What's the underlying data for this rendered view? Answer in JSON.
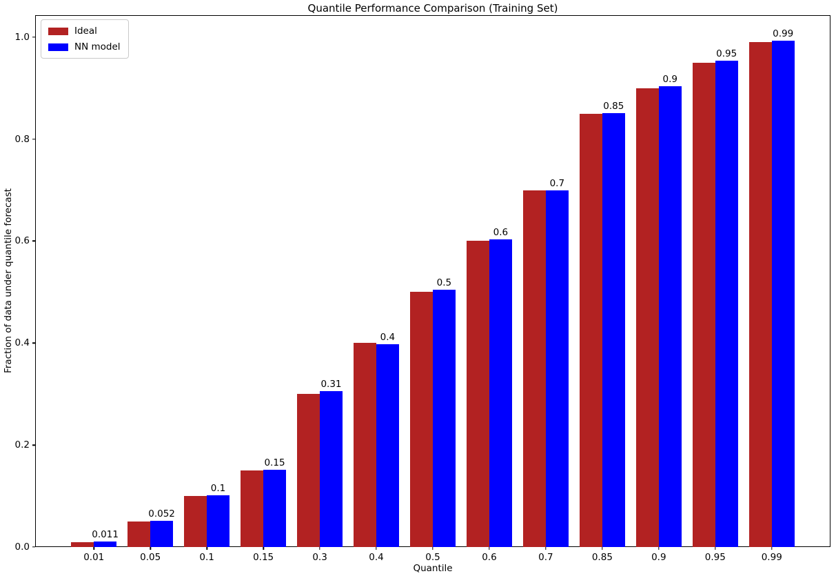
{
  "chart_data": {
    "type": "bar",
    "title": "Quantile Performance Comparison (Training Set)",
    "xlabel": "Quantile",
    "ylabel": "Fraction of data under quantile forecast",
    "categories": [
      "0.01",
      "0.05",
      "0.1",
      "0.15",
      "0.3",
      "0.4",
      "0.5",
      "0.6",
      "0.7",
      "0.85",
      "0.9",
      "0.95",
      "0.99"
    ],
    "series": [
      {
        "name": "Ideal",
        "color": "#b22222",
        "values": [
          0.01,
          0.05,
          0.1,
          0.15,
          0.3,
          0.4,
          0.5,
          0.6,
          0.7,
          0.85,
          0.9,
          0.95,
          0.99
        ]
      },
      {
        "name": "NN model",
        "color": "#0000ff",
        "values": [
          0.011,
          0.052,
          0.102,
          0.152,
          0.306,
          0.398,
          0.504,
          0.604,
          0.7,
          0.851,
          0.903,
          0.954,
          0.993
        ]
      }
    ],
    "bar_labels": [
      "0.011",
      "0.052",
      "0.1",
      "0.15",
      "0.31",
      "0.4",
      "0.5",
      "0.6",
      "0.7",
      "0.85",
      "0.9",
      "0.95",
      "0.99"
    ],
    "yticks": [
      "0.0",
      "0.2",
      "0.4",
      "0.6",
      "0.8",
      "1.0"
    ],
    "ylim": [
      0,
      1.043
    ],
    "grid": false,
    "legend_position": "upper left"
  }
}
